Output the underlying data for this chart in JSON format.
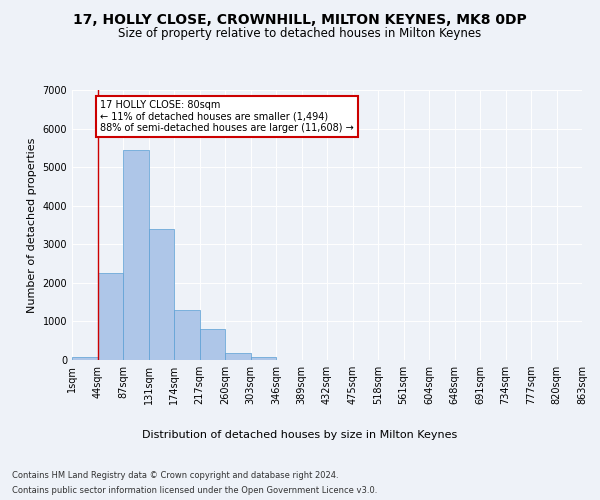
{
  "title": "17, HOLLY CLOSE, CROWNHILL, MILTON KEYNES, MK8 0DP",
  "subtitle": "Size of property relative to detached houses in Milton Keynes",
  "xlabel": "Distribution of detached houses by size in Milton Keynes",
  "ylabel": "Number of detached properties",
  "footer_line1": "Contains HM Land Registry data © Crown copyright and database right 2024.",
  "footer_line2": "Contains public sector information licensed under the Open Government Licence v3.0.",
  "annotation_title": "17 HOLLY CLOSE: 80sqm",
  "annotation_line1": "← 11% of detached houses are smaller (1,494)",
  "annotation_line2": "88% of semi-detached houses are larger (11,608) →",
  "bar_values": [
    70,
    2250,
    5450,
    3400,
    1300,
    800,
    180,
    90,
    0,
    0,
    0,
    0,
    0,
    0,
    0,
    0,
    0,
    0,
    0,
    0
  ],
  "categories": [
    "1sqm",
    "44sqm",
    "87sqm",
    "131sqm",
    "174sqm",
    "217sqm",
    "260sqm",
    "303sqm",
    "346sqm",
    "389sqm",
    "432sqm",
    "475sqm",
    "518sqm",
    "561sqm",
    "604sqm",
    "648sqm",
    "691sqm",
    "734sqm",
    "777sqm",
    "820sqm",
    "863sqm"
  ],
  "bar_color": "#aec6e8",
  "bar_edge_color": "#5a9fd4",
  "vline_x": 1,
  "vline_color": "#cc0000",
  "annotation_box_color": "#cc0000",
  "background_color": "#eef2f8",
  "ylim": [
    0,
    7000
  ],
  "yticks": [
    0,
    1000,
    2000,
    3000,
    4000,
    5000,
    6000,
    7000
  ],
  "title_fontsize": 10,
  "subtitle_fontsize": 8.5,
  "axis_label_fontsize": 8,
  "tick_fontsize": 7,
  "footer_fontsize": 6
}
